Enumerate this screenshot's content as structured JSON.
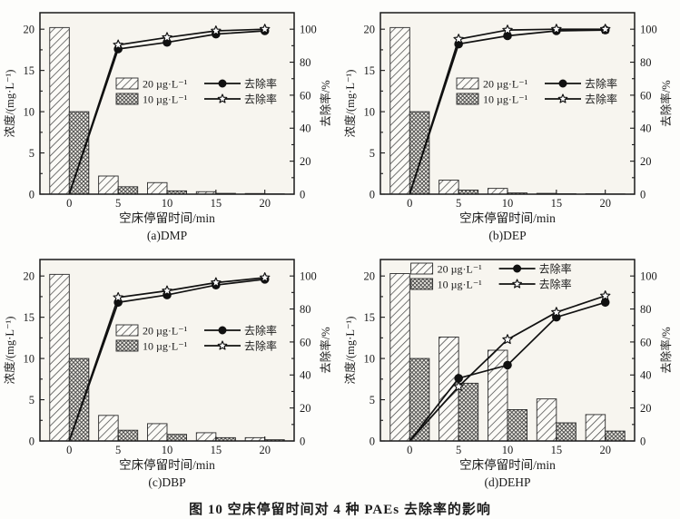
{
  "figure": {
    "caption": "图 10  空床停留时间对 4 种 PAEs 去除率的影响"
  },
  "axes": {
    "xlabel": "空床停留时间/min",
    "ylabel_left": "浓度/(mg·L⁻¹)",
    "ylabel_right": "去除率/%",
    "xlim": [
      -3,
      23
    ],
    "ylim_left": [
      0,
      22
    ],
    "ylim_right": [
      0,
      110
    ],
    "xticks": [
      0,
      5,
      10,
      15,
      20
    ],
    "yticks_left": [
      0,
      5,
      10,
      15,
      20
    ],
    "yticks_right": [
      0,
      20,
      40,
      60,
      80,
      100
    ]
  },
  "legend": {
    "bar_20_label": "20 µg·L⁻¹",
    "bar_10_label": "10 µg·L⁻¹",
    "line_label": "去除率",
    "markers": [
      "filled-circle",
      "open-star"
    ]
  },
  "chart_data": [
    {
      "type": "bar",
      "subplot_label": "(a)DMP",
      "x": [
        0,
        5,
        10,
        15,
        20
      ],
      "bars_20ug": [
        20.2,
        2.2,
        1.4,
        0.3,
        0.08
      ],
      "bars_10ug": [
        10.0,
        0.9,
        0.4,
        0.1,
        0.04
      ],
      "removal_20ug": [
        0,
        88,
        92,
        97,
        99
      ],
      "removal_10ug": [
        0,
        90.5,
        95,
        99,
        100
      ],
      "legend_pos": {
        "fx": 0.3,
        "fy": 0.36
      }
    },
    {
      "type": "bar",
      "subplot_label": "(b)DEP",
      "x": [
        0,
        5,
        10,
        15,
        20
      ],
      "bars_20ug": [
        20.2,
        1.7,
        0.7,
        0.1,
        0.05
      ],
      "bars_10ug": [
        10.0,
        0.5,
        0.15,
        0.05,
        0.03
      ],
      "removal_20ug": [
        0,
        91,
        96,
        99,
        99.5
      ],
      "removal_10ug": [
        0,
        94,
        99.5,
        100,
        100
      ],
      "legend_pos": {
        "fx": 0.3,
        "fy": 0.36
      }
    },
    {
      "type": "bar",
      "subplot_label": "(c)DBP",
      "x": [
        0,
        5,
        10,
        15,
        20
      ],
      "bars_20ug": [
        20.2,
        3.1,
        2.1,
        1.0,
        0.4
      ],
      "bars_10ug": [
        10.0,
        1.3,
        0.8,
        0.4,
        0.15
      ],
      "removal_20ug": [
        0,
        84,
        88.5,
        94.5,
        98
      ],
      "removal_10ug": [
        0,
        87,
        91,
        96,
        99
      ],
      "legend_pos": {
        "fx": 0.3,
        "fy": 0.36
      }
    },
    {
      "type": "bar",
      "subplot_label": "(d)DEHP",
      "x": [
        0,
        5,
        10,
        15,
        20
      ],
      "bars_20ug": [
        20.3,
        12.6,
        11.0,
        5.1,
        3.2
      ],
      "bars_10ug": [
        10.0,
        7.0,
        3.8,
        2.2,
        1.2
      ],
      "removal_20ug": [
        0,
        38,
        46,
        75,
        84
      ],
      "removal_10ug": [
        0,
        33,
        61.5,
        78,
        88
      ],
      "legend_pos": {
        "fx": 0.12,
        "fy": 0.02
      }
    }
  ]
}
